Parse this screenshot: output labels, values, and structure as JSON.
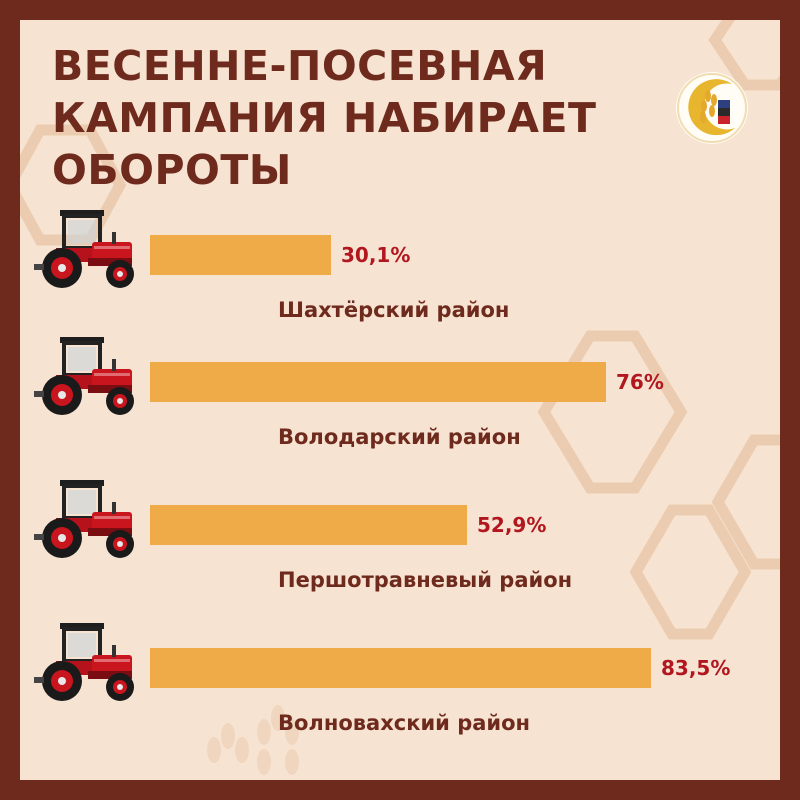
{
  "title_lines": [
    "ВЕСЕННЕ-ПОСЕВНАЯ",
    "КАМПАНИЯ НАБИРАЕТ",
    "ОБОРОТЫ"
  ],
  "colors": {
    "frame": "#6e2a1c",
    "background": "#f6e3d2",
    "bar": "#efab47",
    "value_text": "#b2171f",
    "label_text": "#6e2a1c",
    "hexagon_outline": "#ecccb0"
  },
  "icons": {
    "logo": "wheat-emblem-logo",
    "row_icon": "red-tractor-icon",
    "decoration": "hexagon-outline"
  },
  "chart_data": {
    "type": "bar",
    "orientation": "horizontal",
    "unit": "%",
    "categories": [
      "Шахтёрский район",
      "Володарский район",
      "Першотравневый район",
      "Волновахский район"
    ],
    "values": [
      30.1,
      76,
      52.9,
      83.5
    ],
    "value_labels": [
      "30,1%",
      "76%",
      "52,9%",
      "83,5%"
    ],
    "xlim": [
      0,
      100
    ]
  }
}
